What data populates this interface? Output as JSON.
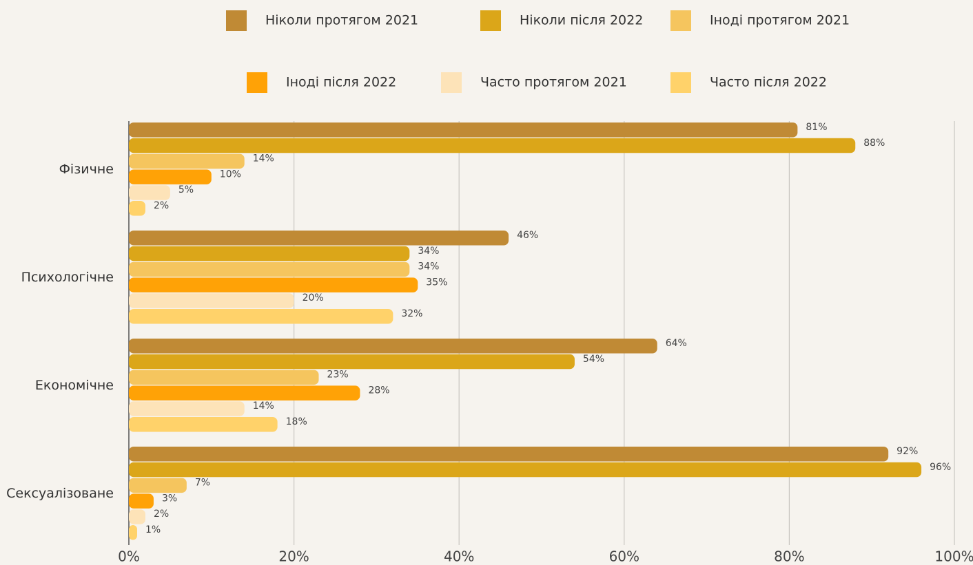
{
  "chart_data": {
    "type": "hbar",
    "categories": [
      "Фізичне",
      "Психологічне",
      "Економічне",
      "Сексуалізоване"
    ],
    "series": [
      {
        "name": "Ніколи протягом 2021",
        "color": "#c08a35",
        "values": [
          81,
          46,
          64,
          92
        ],
        "value_labels": [
          "81%",
          "46%",
          "64%",
          "92%"
        ]
      },
      {
        "name": "Ніколи після 2022",
        "color": "#dba619",
        "values": [
          88,
          34,
          54,
          96
        ],
        "value_labels": [
          "88%",
          "34%",
          "54%",
          "96%"
        ]
      },
      {
        "name": "Іноді протягом 2021",
        "color": "#f5c55e",
        "values": [
          14,
          34,
          23,
          7
        ],
        "value_labels": [
          "14%",
          "34%",
          "23%",
          "7%"
        ]
      },
      {
        "name": "Іноді після 2022",
        "color": "#ffa206",
        "values": [
          10,
          35,
          28,
          3
        ],
        "value_labels": [
          "10%",
          "35%",
          "28%",
          "3%"
        ]
      },
      {
        "name": "Часто протягом 2021",
        "color": "#fde3b8",
        "values": [
          5,
          20,
          14,
          2
        ],
        "value_labels": [
          "5%",
          "20%",
          "14%",
          "2%"
        ]
      },
      {
        "name": "Часто після 2022",
        "color": "#ffd26a",
        "values": [
          2,
          32,
          18,
          1
        ],
        "value_labels": [
          "2%",
          "32%",
          "18%",
          "1%"
        ]
      }
    ],
    "xlim": [
      0,
      100
    ],
    "xticks": [
      {
        "value": 0,
        "label": "0%"
      },
      {
        "value": 20,
        "label": "20%"
      },
      {
        "value": 40,
        "label": "40%"
      },
      {
        "value": 60,
        "label": "60%"
      },
      {
        "value": 80,
        "label": "80%"
      },
      {
        "value": 100,
        "label": "100%"
      }
    ],
    "grid": true,
    "legend": "top"
  }
}
